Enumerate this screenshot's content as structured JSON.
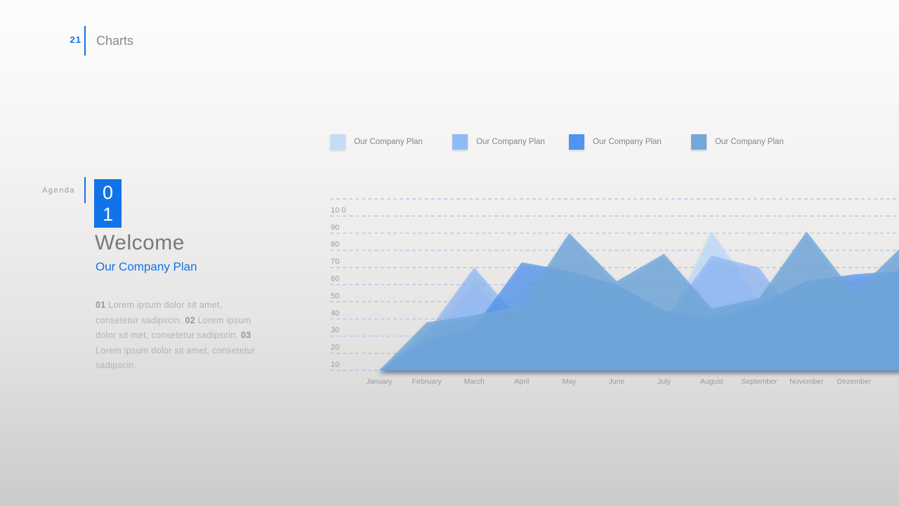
{
  "colors": {
    "accent": "#1173e8",
    "grid": "#a6c1e8",
    "tick_text": "#9b9b9b"
  },
  "header": {
    "page_number": "21",
    "section_title": "Charts"
  },
  "agenda": {
    "label": "Agenda",
    "number_lines": [
      "0",
      "1"
    ],
    "title": "Welcome",
    "subtitle": "Our Company Plan",
    "body_segments": [
      {
        "text": "01 ",
        "bold": true
      },
      {
        "text": "Lorem ipsum dolor sit amet, consetetur sadipscin. ",
        "bold": false
      },
      {
        "text": "02 ",
        "bold": true
      },
      {
        "text": "Lorem ipsum dolor sit met, consetetur sadipscin. ",
        "bold": false
      },
      {
        "text": "03 ",
        "bold": true
      },
      {
        "text": "Lorem ipsum dolor sit amet, consetetur sadipscin.",
        "bold": false
      }
    ]
  },
  "chart_data": {
    "type": "area",
    "title": "",
    "xlabel": "",
    "ylabel": "",
    "ylim": [
      0,
      100
    ],
    "grid": "dashed horizontal lines every 10 units",
    "legend_position": "top",
    "y_ticks": [
      "10 0",
      "90",
      "80",
      "70",
      "60",
      "50",
      "40",
      "30",
      "20",
      "10"
    ],
    "categories": [
      "January",
      "February",
      "March",
      "April",
      "May",
      "June",
      "July",
      "August",
      "September",
      "November",
      "Dezember",
      ""
    ],
    "series": [
      {
        "name": "Our Company Plan",
        "color": "#c5dcf7",
        "opacity": 0.92,
        "values": [
          0,
          15,
          50,
          22,
          32,
          24,
          22,
          81,
          40,
          14,
          18,
          30
        ]
      },
      {
        "name": "Our Company Plan",
        "color": "#8fbaf8",
        "opacity": 0.72,
        "values": [
          0,
          22,
          60,
          28,
          45,
          32,
          28,
          67,
          60,
          22,
          28,
          62
        ]
      },
      {
        "name": "Our Company Plan",
        "color": "#4e94f0",
        "opacity": 0.72,
        "values": [
          0,
          18,
          25,
          63,
          58,
          50,
          35,
          30,
          38,
          52,
          56,
          58
        ]
      },
      {
        "name": "Our Company Plan",
        "color": "#72a8dc",
        "opacity": 0.82,
        "values": [
          0,
          28,
          32,
          38,
          80,
          52,
          68,
          36,
          42,
          81,
          45,
          72
        ]
      }
    ]
  }
}
